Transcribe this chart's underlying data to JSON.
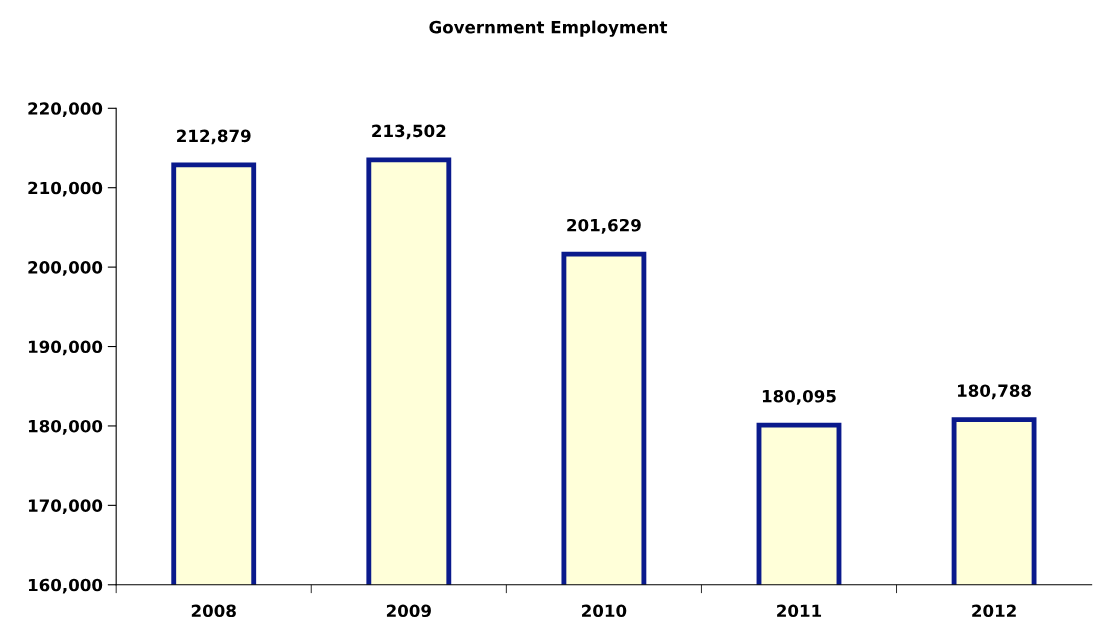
{
  "chart_data": {
    "type": "bar",
    "title": "Government Employment",
    "categories": [
      "2008",
      "2009",
      "2010",
      "2011",
      "2012"
    ],
    "values": [
      212879,
      213502,
      201629,
      180095,
      180788
    ],
    "color": "#ffffd9",
    "ylim": [
      160000,
      220000
    ],
    "yticks": [
      {
        "value": 160000,
        "label": "160,000"
      },
      {
        "value": 170000,
        "label": "170,000"
      },
      {
        "value": 180000,
        "label": "180,000"
      },
      {
        "value": 190000,
        "label": "190,000"
      },
      {
        "value": 200000,
        "label": "200,000"
      },
      {
        "value": 210000,
        "label": "210,000"
      },
      {
        "value": 220000,
        "label": "220,000"
      }
    ],
    "value_labels": [
      "212,879",
      "213,502",
      "201,629",
      "180,095",
      "180,788"
    ],
    "grid": false,
    "legend": false
  }
}
